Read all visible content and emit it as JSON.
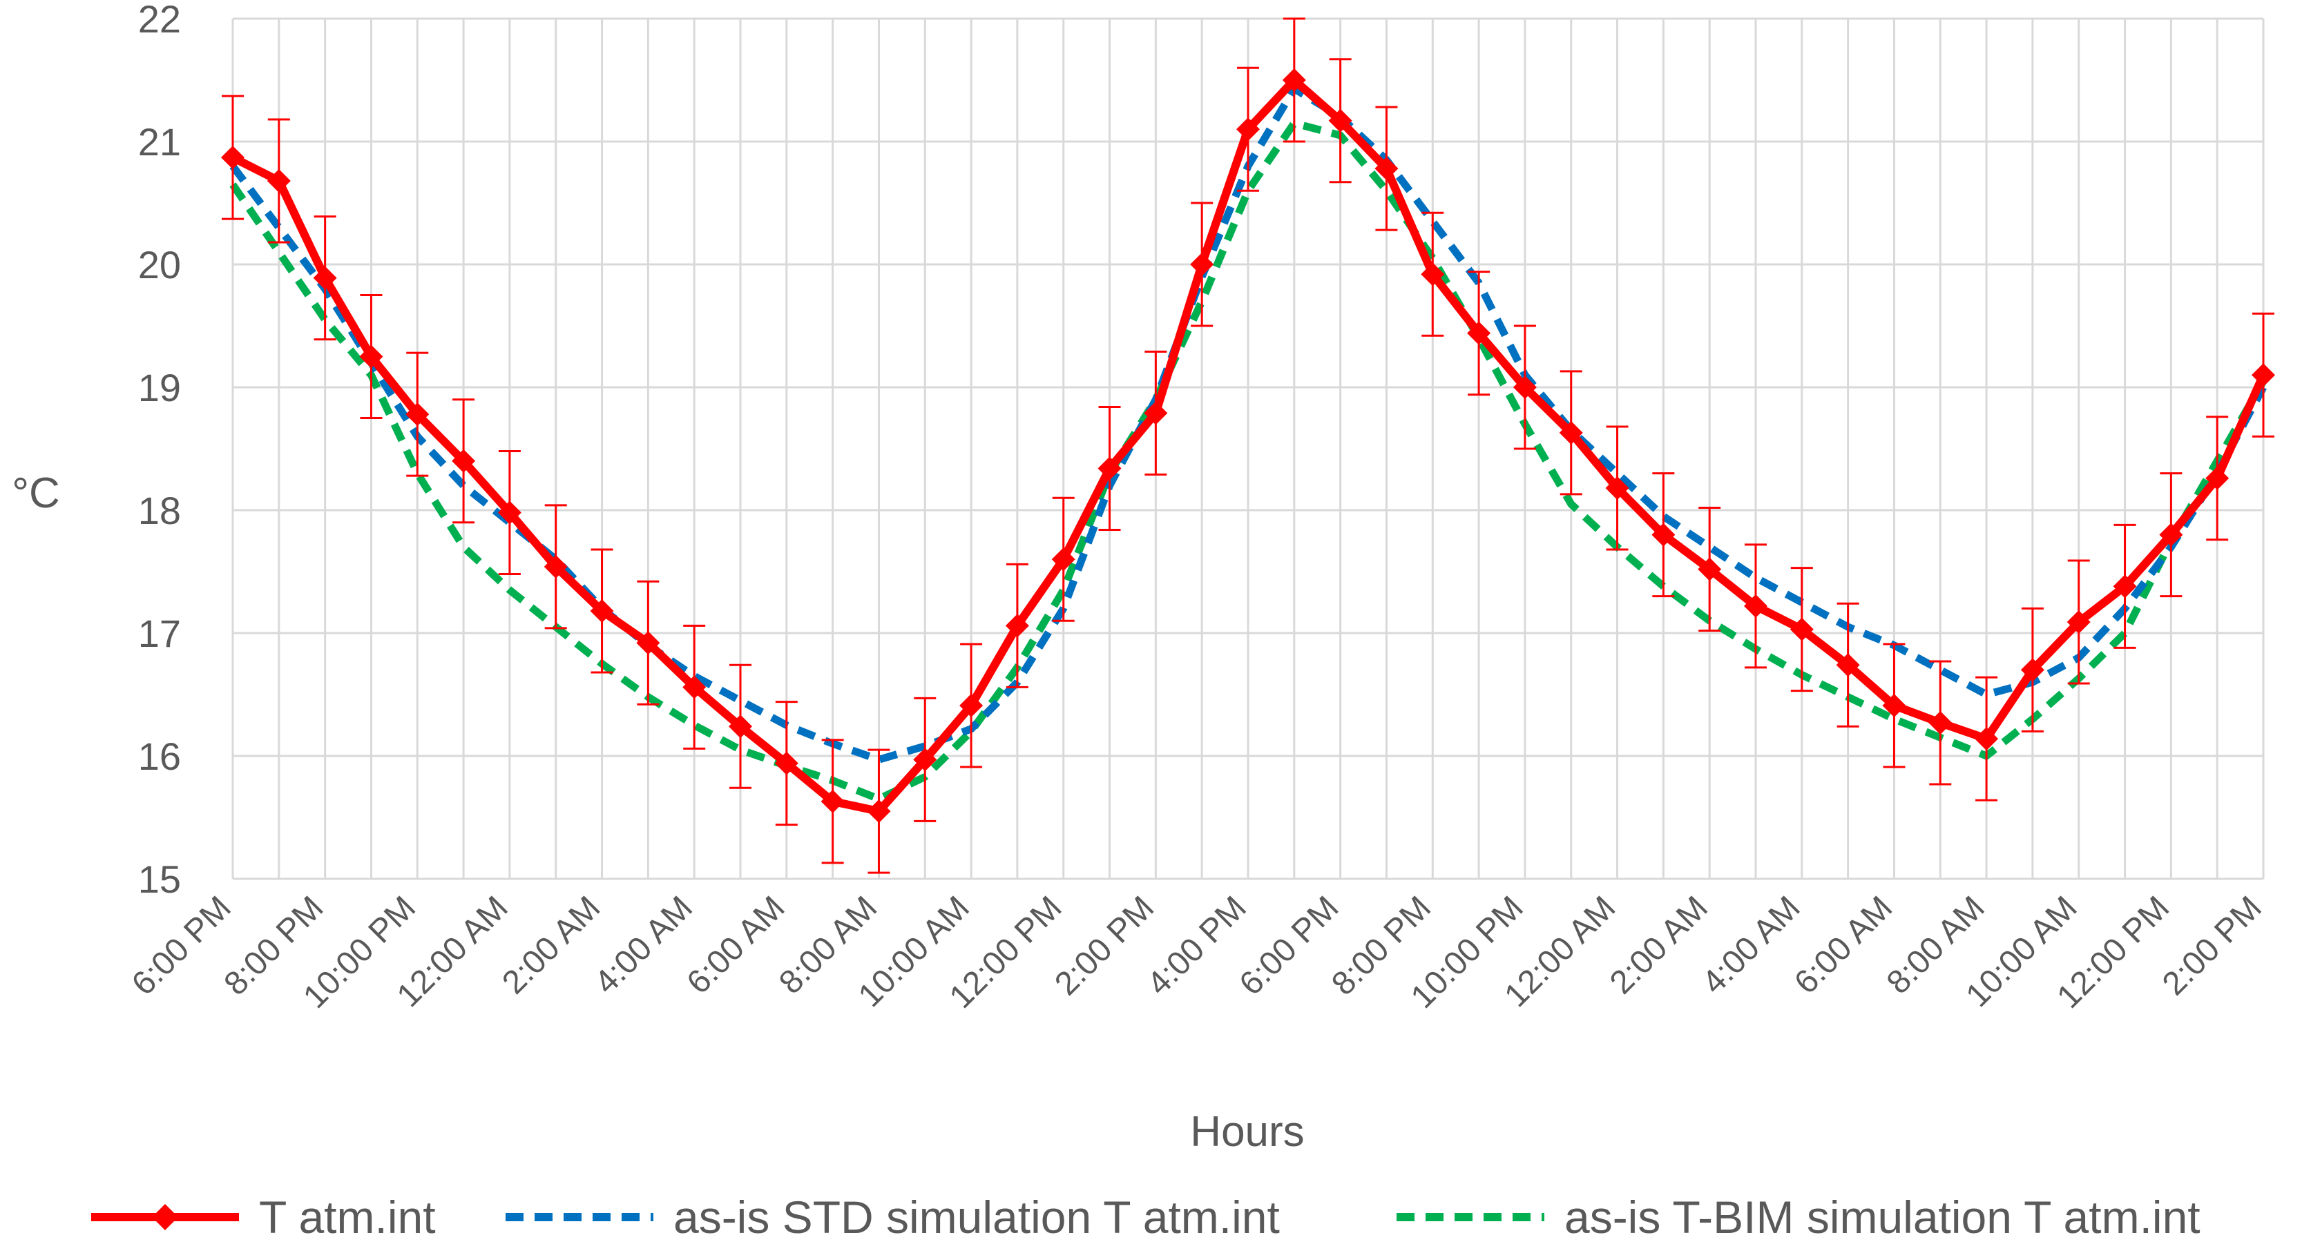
{
  "chart_data": {
    "type": "line",
    "title": "",
    "xlabel": "Hours",
    "ylabel": "°C",
    "ylim": [
      15,
      22
    ],
    "yticks": [
      "15",
      "16",
      "17",
      "18",
      "19",
      "20",
      "21",
      "22"
    ],
    "grid": true,
    "legend_position": "bottom",
    "x_tick_labels": [
      "6:00 PM",
      "8:00 PM",
      "10:00 PM",
      "12:00 AM",
      "2:00 AM",
      "4:00 AM",
      "6:00 AM",
      "8:00 AM",
      "10:00 AM",
      "12:00 PM",
      "2:00 PM",
      "4:00 PM",
      "6:00 PM",
      "8:00 PM",
      "10:00 PM",
      "12:00 AM",
      "2:00 AM",
      "4:00 AM",
      "6:00 AM",
      "8:00 AM",
      "10:00 AM",
      "12:00 PM",
      "2:00 PM"
    ],
    "hours": [
      0,
      1,
      2,
      3,
      4,
      5,
      6,
      7,
      8,
      9,
      10,
      11,
      12,
      13,
      14,
      15,
      16,
      17,
      18,
      19,
      20,
      21,
      22,
      23,
      24,
      25,
      26,
      27,
      28,
      29,
      30,
      31,
      32,
      33,
      34,
      35,
      36,
      37,
      38,
      39,
      40,
      41,
      42,
      43,
      44
    ],
    "error_bar": 0.5,
    "series": [
      {
        "name": "T atm.int",
        "color": "#FF0000",
        "style": "solid",
        "marker": "diamond",
        "values": [
          20.87,
          20.68,
          19.89,
          19.25,
          18.78,
          18.4,
          17.98,
          17.54,
          17.18,
          16.92,
          16.56,
          16.24,
          15.94,
          15.63,
          15.55,
          15.97,
          16.41,
          17.06,
          17.6,
          18.34,
          18.79,
          20.0,
          21.1,
          21.5,
          21.17,
          20.78,
          19.92,
          19.44,
          19.0,
          18.63,
          18.18,
          17.8,
          17.52,
          17.22,
          17.03,
          16.74,
          16.41,
          16.27,
          16.14,
          16.7,
          17.09,
          17.38,
          17.8,
          18.26,
          19.1
        ]
      },
      {
        "name": "as-is STD simulation T atm.int",
        "color": "#0070C0",
        "style": "dashed",
        "values": [
          20.8,
          20.3,
          19.8,
          19.2,
          18.6,
          18.2,
          17.9,
          17.6,
          17.2,
          16.9,
          16.65,
          16.45,
          16.25,
          16.1,
          15.97,
          16.08,
          16.22,
          16.6,
          17.2,
          18.2,
          18.9,
          19.9,
          20.8,
          21.43,
          21.2,
          20.85,
          20.35,
          19.85,
          19.1,
          18.65,
          18.3,
          17.95,
          17.7,
          17.45,
          17.25,
          17.05,
          16.9,
          16.7,
          16.5,
          16.6,
          16.8,
          17.2,
          17.7,
          18.3,
          19.0
        ]
      },
      {
        "name": "as-is T-BIM simulation T atm.int",
        "color": "#00B050",
        "style": "dashed",
        "values": [
          20.65,
          20.1,
          19.55,
          19.1,
          18.3,
          17.7,
          17.35,
          17.05,
          16.75,
          16.48,
          16.25,
          16.05,
          15.92,
          15.8,
          15.65,
          15.83,
          16.2,
          16.72,
          17.35,
          18.3,
          18.9,
          19.7,
          20.6,
          21.15,
          21.05,
          20.6,
          20.05,
          19.4,
          18.7,
          18.05,
          17.7,
          17.38,
          17.1,
          16.87,
          16.66,
          16.48,
          16.3,
          16.15,
          16.0,
          16.3,
          16.63,
          17.0,
          17.75,
          18.4,
          19.05
        ]
      }
    ]
  }
}
